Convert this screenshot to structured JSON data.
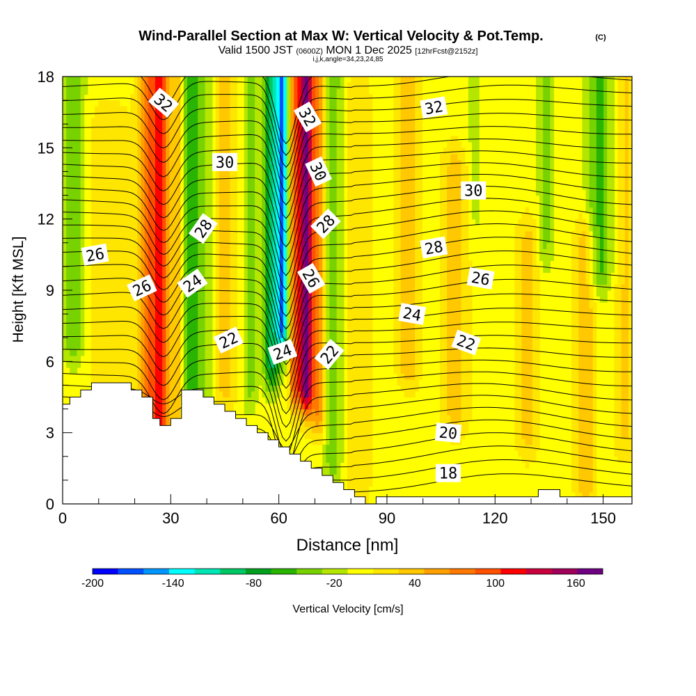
{
  "chart_data": {
    "type": "heatmap",
    "title": "Wind-Parallel Section at Max W: Vertical Velocity & Pot.Temp.",
    "copyright": "(C)",
    "valid_main": "Valid 1500 JST",
    "valid_z": "(0600Z)",
    "valid_date": "MON 1 Dec 2025",
    "fcst": "[12hrFcst@2152z]",
    "ijk": "i,j,k,angle=34,23,24,85",
    "xlabel": "Distance [nm]",
    "ylabel": "Height [Kft MSL]",
    "xlim": [
      0,
      158
    ],
    "ylim": [
      0,
      18
    ],
    "x_ticks": [
      "0",
      "30",
      "60",
      "90",
      "120",
      "150"
    ],
    "y_ticks": [
      "0",
      "3",
      "6",
      "9",
      "12",
      "15",
      "18"
    ],
    "colorbar": {
      "label": "Vertical Velocity [cm/s]",
      "tick_labels": [
        "-200",
        "-140",
        "-80",
        "-20",
        "40",
        "100",
        "160"
      ],
      "range": [
        -200,
        180
      ],
      "colors": [
        "#0000ff",
        "#0050ff",
        "#0096ff",
        "#00ffff",
        "#00e6b4",
        "#00c864",
        "#00a01e",
        "#28b400",
        "#78d200",
        "#b4e600",
        "#ffff00",
        "#ffe600",
        "#ffc800",
        "#ffa000",
        "#ff7800",
        "#ff5000",
        "#ff0000",
        "#c8003c",
        "#a0005a",
        "#6e0082"
      ]
    },
    "terrain_kft": [
      [
        0,
        4.2
      ],
      [
        2,
        4.2
      ],
      [
        2,
        4.5
      ],
      [
        5,
        4.5
      ],
      [
        5,
        4.8
      ],
      [
        8,
        4.8
      ],
      [
        8,
        5.1
      ],
      [
        19,
        5.1
      ],
      [
        19,
        4.8
      ],
      [
        22,
        4.8
      ],
      [
        22,
        4.5
      ],
      [
        25,
        4.5
      ],
      [
        25,
        3.6
      ],
      [
        27,
        3.6
      ],
      [
        27,
        3.3
      ],
      [
        30,
        3.3
      ],
      [
        30,
        3.6
      ],
      [
        33,
        3.6
      ],
      [
        33,
        4.8
      ],
      [
        39,
        4.8
      ],
      [
        39,
        4.5
      ],
      [
        42,
        4.5
      ],
      [
        42,
        4.2
      ],
      [
        45,
        4.2
      ],
      [
        45,
        3.9
      ],
      [
        48,
        3.9
      ],
      [
        48,
        3.6
      ],
      [
        51,
        3.6
      ],
      [
        51,
        3.3
      ],
      [
        54,
        3.3
      ],
      [
        54,
        3.0
      ],
      [
        57,
        3.0
      ],
      [
        57,
        2.7
      ],
      [
        60,
        2.7
      ],
      [
        60,
        2.4
      ],
      [
        63,
        2.4
      ],
      [
        63,
        2.1
      ],
      [
        66,
        2.1
      ],
      [
        66,
        1.8
      ],
      [
        69,
        1.8
      ],
      [
        69,
        1.5
      ],
      [
        72,
        1.5
      ],
      [
        72,
        1.2
      ],
      [
        75,
        1.2
      ],
      [
        75,
        0.9
      ],
      [
        78,
        0.9
      ],
      [
        78,
        0.6
      ],
      [
        81,
        0.6
      ],
      [
        81,
        0.3
      ],
      [
        84,
        0.3
      ],
      [
        84,
        0.0
      ],
      [
        87,
        0.0
      ],
      [
        87,
        0.3
      ],
      [
        132,
        0.3
      ],
      [
        132,
        0.6
      ],
      [
        138,
        0.6
      ],
      [
        138,
        0.3
      ],
      [
        158,
        0.3
      ]
    ],
    "w_field": {
      "background": 0,
      "features": [
        {
          "x": 3,
          "w": 3,
          "z0": 7,
          "z1": 18,
          "val": -45
        },
        {
          "x": 13,
          "w": 6,
          "z0": 3,
          "z1": 16,
          "val": 20
        },
        {
          "x": 23,
          "w": 2.5,
          "z0": 3,
          "z1": 18,
          "val": 60
        },
        {
          "x": 27,
          "w": 2.8,
          "z0": 3.5,
          "z1": 18,
          "val": 115
        },
        {
          "x": 32,
          "w": 1.2,
          "z0": 4,
          "z1": 18,
          "val": 40
        },
        {
          "x": 36,
          "w": 2.5,
          "z0": 4,
          "z1": 18,
          "val": -65
        },
        {
          "x": 40,
          "w": 2.2,
          "z0": 5,
          "z1": 18,
          "val": -20
        },
        {
          "x": 45,
          "w": 3,
          "z0": 5,
          "z1": 18,
          "val": 35
        },
        {
          "x": 52,
          "w": 2,
          "z0": 5,
          "z1": 18,
          "val": -35
        },
        {
          "x": 58,
          "w": 2.2,
          "z0": 6,
          "z1": 18,
          "val": -95
        },
        {
          "x": 61,
          "w": 1.6,
          "z0": 7.5,
          "z1": 18,
          "val": -150
        },
        {
          "x": 64.5,
          "w": 1.5,
          "z0": 5,
          "z1": 18,
          "val": 90
        },
        {
          "x": 67.5,
          "w": 1.8,
          "z0": 5,
          "z1": 18,
          "val": 170
        },
        {
          "x": 71,
          "w": 2.2,
          "z0": 4,
          "z1": 18,
          "val": 70
        },
        {
          "x": 75,
          "w": 2.5,
          "z0": 2,
          "z1": 18,
          "val": -45
        },
        {
          "x": 82,
          "w": 3.5,
          "z0": 1,
          "z1": 17,
          "val": 25
        },
        {
          "x": 96,
          "w": 3,
          "z0": 6,
          "z1": 18,
          "val": 45
        },
        {
          "x": 109,
          "w": 3.5,
          "z0": 4,
          "z1": 14,
          "val": 40
        },
        {
          "x": 114,
          "w": 2.5,
          "z0": 12,
          "z1": 18,
          "val": -15
        },
        {
          "x": 129,
          "w": 3,
          "z0": 3,
          "z1": 11,
          "val": 35
        },
        {
          "x": 134,
          "w": 2,
          "z0": 11,
          "z1": 18,
          "val": -35
        },
        {
          "x": 145,
          "w": 2.8,
          "z0": 1,
          "z1": 11,
          "val": 45
        },
        {
          "x": 149,
          "w": 3.5,
          "z0": 10,
          "z1": 18,
          "val": -55
        },
        {
          "x": 156,
          "w": 3,
          "z0": 3,
          "z1": 18,
          "val": 30
        }
      ]
    },
    "pot_temp_labels": [
      {
        "text": "32",
        "x": 28,
        "z": 16.9,
        "rot": -40
      },
      {
        "text": "32",
        "x": 68,
        "z": 16.3,
        "rot": -60
      },
      {
        "text": "32",
        "x": 103,
        "z": 16.7,
        "rot": 10
      },
      {
        "text": "30",
        "x": 45,
        "z": 14.4,
        "rot": 0
      },
      {
        "text": "30",
        "x": 71,
        "z": 14.0,
        "rot": -65
      },
      {
        "text": "30",
        "x": 114,
        "z": 13.2,
        "rot": 0
      },
      {
        "text": "28",
        "x": 39,
        "z": 11.6,
        "rot": 55
      },
      {
        "text": "28",
        "x": 73,
        "z": 11.8,
        "rot": 45
      },
      {
        "text": "28",
        "x": 103,
        "z": 10.8,
        "rot": 10
      },
      {
        "text": "26",
        "x": 9,
        "z": 10.5,
        "rot": 10
      },
      {
        "text": "26",
        "x": 22,
        "z": 9.1,
        "rot": 25
      },
      {
        "text": "26",
        "x": 69,
        "z": 9.5,
        "rot": -60
      },
      {
        "text": "26",
        "x": 116,
        "z": 9.5,
        "rot": -10
      },
      {
        "text": "24",
        "x": 36,
        "z": 9.3,
        "rot": 35
      },
      {
        "text": "24",
        "x": 97,
        "z": 8.0,
        "rot": -10
      },
      {
        "text": "24",
        "x": 61,
        "z": 6.4,
        "rot": 20
      },
      {
        "text": "22",
        "x": 46,
        "z": 6.9,
        "rot": 25
      },
      {
        "text": "22",
        "x": 74,
        "z": 6.3,
        "rot": 50
      },
      {
        "text": "22",
        "x": 112,
        "z": 6.8,
        "rot": -20
      },
      {
        "text": "20",
        "x": 107,
        "z": 3.0,
        "rot": -5
      },
      {
        "text": "18",
        "x": 107,
        "z": 1.3,
        "rot": 0
      }
    ]
  }
}
